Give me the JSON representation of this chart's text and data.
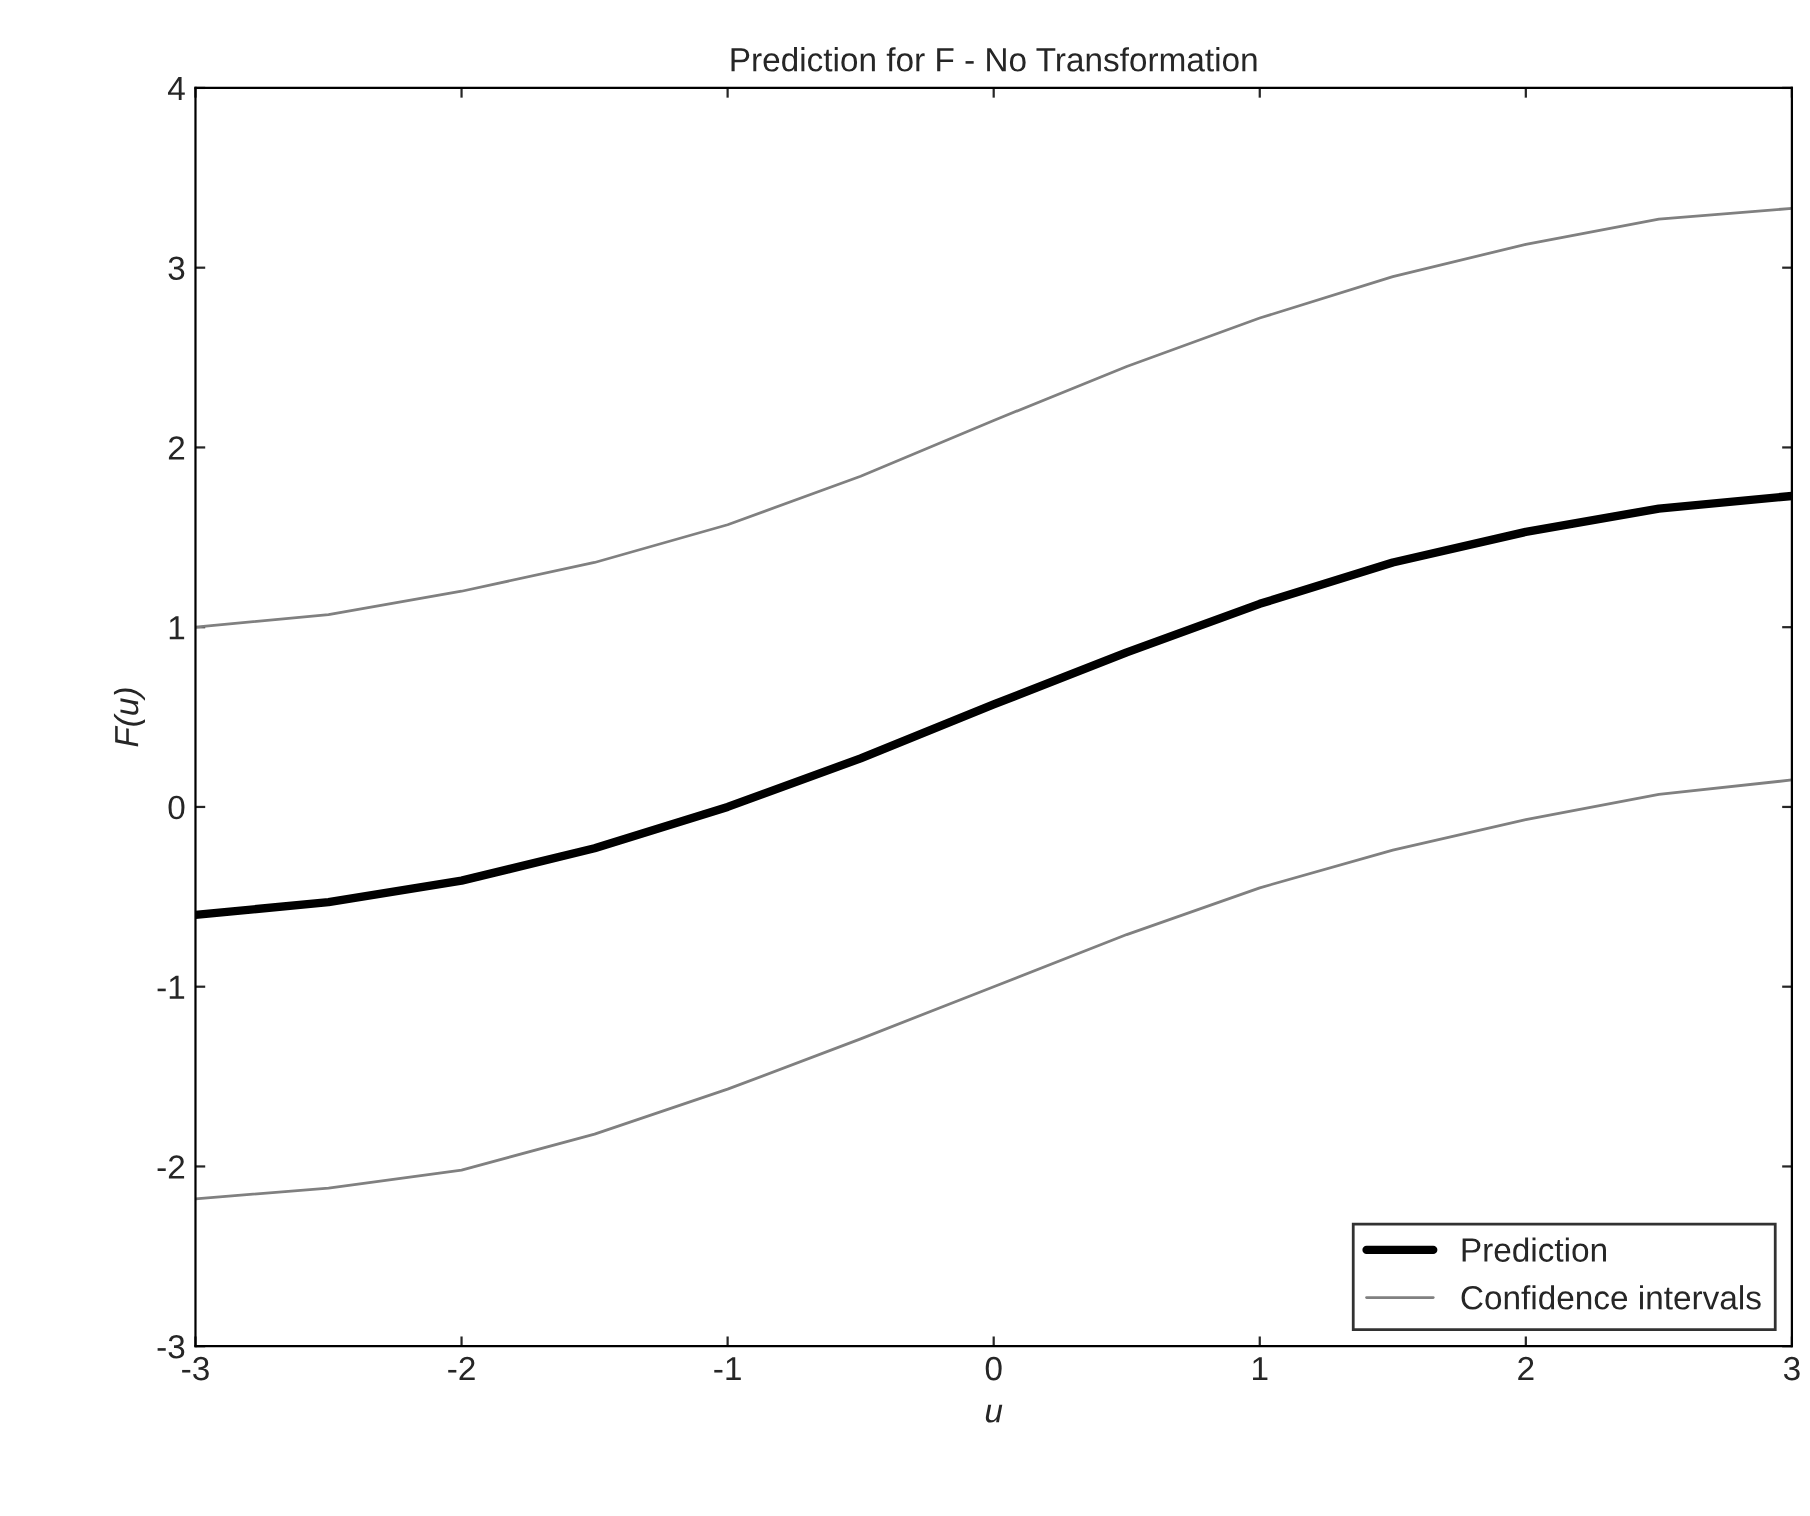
{
  "chart_data": {
    "type": "line",
    "title": "Prediction for F - No Transformation",
    "xlabel": "u",
    "ylabel": "F(u)",
    "x": [
      -3,
      -2.5,
      -2,
      -1.5,
      -1,
      -0.5,
      0,
      0.5,
      1,
      1.5,
      2,
      2.5,
      3
    ],
    "series": [
      {
        "name": "Prediction",
        "color": "#000000",
        "values": [
          -0.6,
          -0.53,
          -0.41,
          -0.23,
          0.0,
          0.27,
          0.57,
          0.86,
          1.13,
          1.36,
          1.53,
          1.66,
          1.73
        ]
      },
      {
        "name": "Confidence intervals",
        "color": "#808080",
        "values": [
          1.0,
          1.07,
          1.2,
          1.36,
          1.57,
          1.84,
          2.15,
          2.45,
          2.72,
          2.95,
          3.13,
          3.27,
          3.33
        ]
      },
      {
        "color": "#808080",
        "values": [
          -2.18,
          -2.12,
          -2.02,
          -1.82,
          -1.57,
          -1.29,
          -1.0,
          -0.71,
          -0.45,
          -0.24,
          -0.07,
          0.07,
          0.15
        ]
      }
    ],
    "xlim": [
      -3,
      3
    ],
    "xticks": [
      -3,
      -2,
      -1,
      0,
      1,
      2,
      3
    ],
    "ylim": [
      -3,
      4
    ],
    "yticks": [
      -3,
      -2,
      -1,
      0,
      1,
      2,
      3,
      4
    ],
    "grid": false,
    "legend": "bottom right"
  }
}
